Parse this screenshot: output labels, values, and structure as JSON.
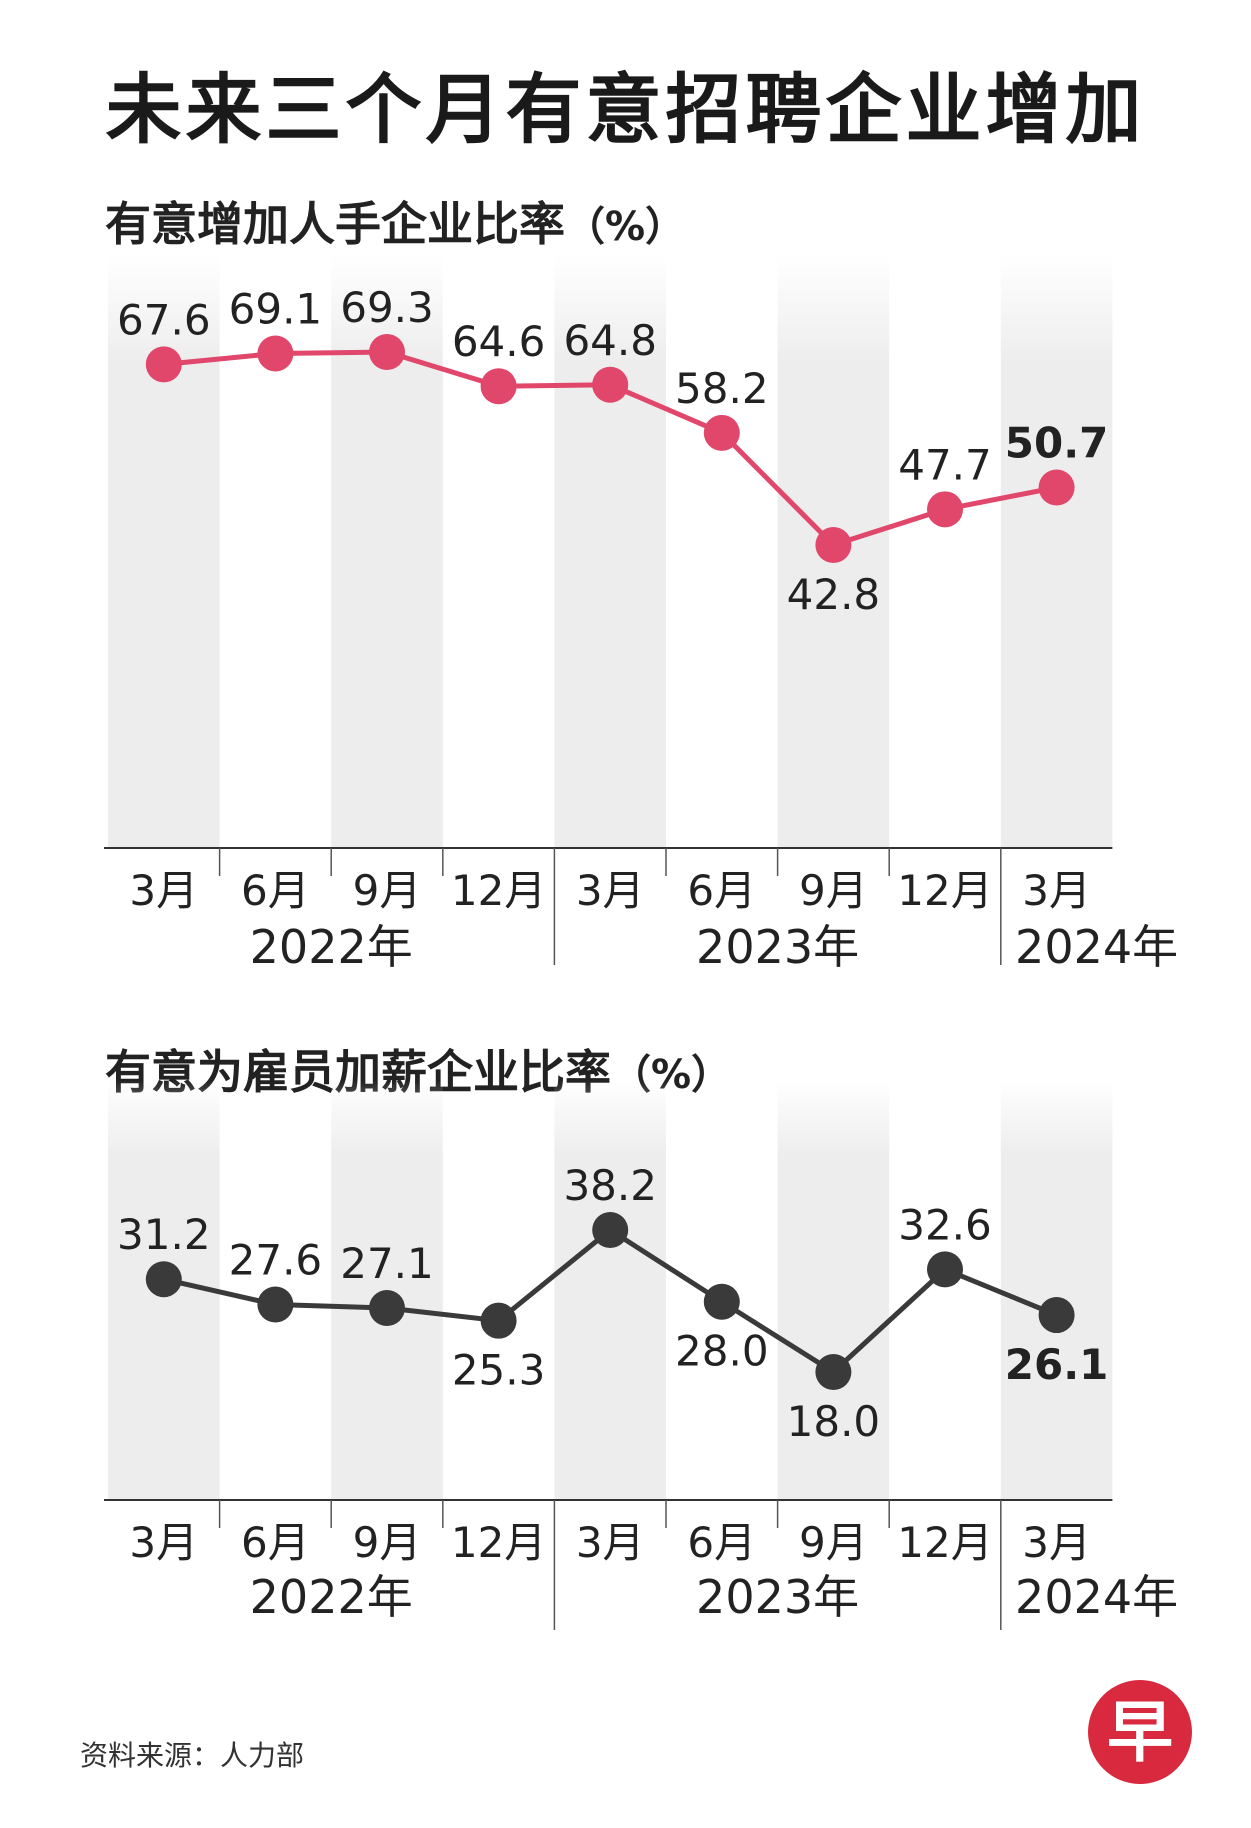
{
  "title": "未来三个月有意招聘企业增加",
  "source": "资料来源：人力部",
  "logo_text": "早",
  "chart_data": [
    {
      "type": "line",
      "title": "有意增加人手企业比率",
      "unit": "（%）",
      "color": "#e0476b",
      "categories": [
        "3月",
        "6月",
        "9月",
        "12月",
        "3月",
        "6月",
        "9月",
        "12月",
        "3月"
      ],
      "years": [
        {
          "label": "2022年",
          "start": 0,
          "end": 3
        },
        {
          "label": "2023年",
          "start": 4,
          "end": 7
        },
        {
          "label": "2024年",
          "start": 8,
          "end": 8
        }
      ],
      "values": [
        67.6,
        69.1,
        69.3,
        64.6,
        64.8,
        58.2,
        42.8,
        47.7,
        50.7
      ],
      "labels": [
        "67.6",
        "69.1",
        "69.3",
        "64.6",
        "64.8",
        "58.2",
        "42.8",
        "47.7",
        "50.7"
      ],
      "label_positions": [
        "above",
        "above",
        "above",
        "above",
        "above",
        "above",
        "below",
        "above",
        "above"
      ],
      "highlight_last": true
    },
    {
      "type": "line",
      "title": "有意为雇员加薪企业比率",
      "unit": "（%）",
      "color": "#3a3a3a",
      "categories": [
        "3月",
        "6月",
        "9月",
        "12月",
        "3月",
        "6月",
        "9月",
        "12月",
        "3月"
      ],
      "years": [
        {
          "label": "2022年",
          "start": 0,
          "end": 3
        },
        {
          "label": "2023年",
          "start": 4,
          "end": 7
        },
        {
          "label": "2024年",
          "start": 8,
          "end": 8
        }
      ],
      "values": [
        31.2,
        27.6,
        27.1,
        25.3,
        38.2,
        28.0,
        18.0,
        32.6,
        26.1
      ],
      "labels": [
        "31.2",
        "27.6",
        "27.1",
        "25.3",
        "38.2",
        "28.0",
        "18.0",
        "32.6",
        "26.1"
      ],
      "label_positions": [
        "above",
        "above",
        "above",
        "below",
        "above",
        "below",
        "below",
        "above",
        "below"
      ],
      "highlight_last": true
    }
  ]
}
